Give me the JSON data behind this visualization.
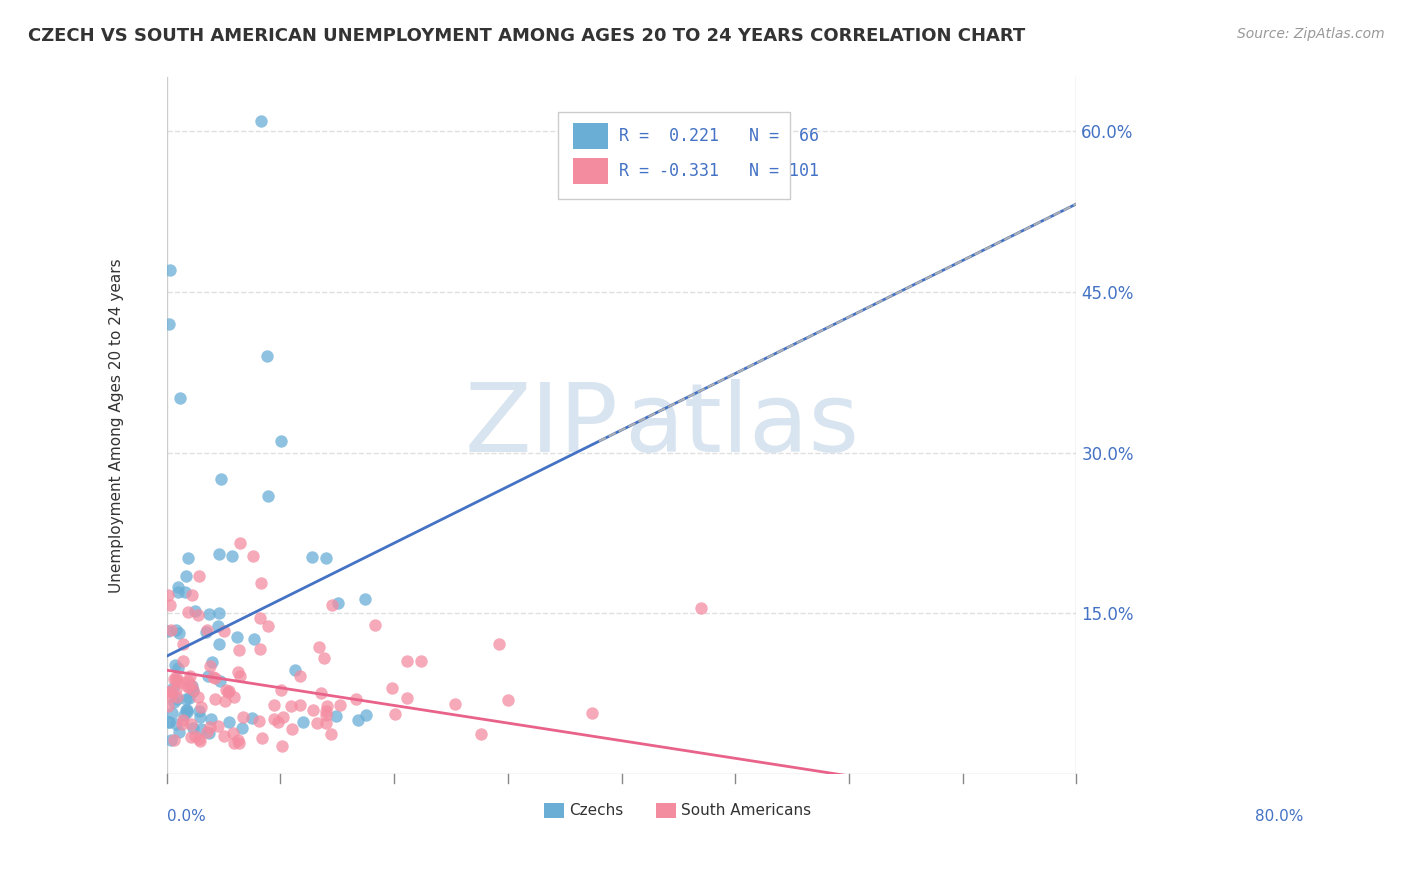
{
  "title": "CZECH VS SOUTH AMERICAN UNEMPLOYMENT AMONG AGES 20 TO 24 YEARS CORRELATION CHART",
  "source": "Source: ZipAtlas.com",
  "ylabel": "Unemployment Among Ages 20 to 24 years",
  "ytick_labels": [
    "15.0%",
    "30.0%",
    "45.0%",
    "60.0%"
  ],
  "ytick_values": [
    0.15,
    0.3,
    0.45,
    0.6
  ],
  "xlim": [
    0.0,
    0.8
  ],
  "ylim": [
    0.0,
    0.65
  ],
  "czechs_color": "#6aaed6",
  "south_americans_color": "#f48ca0",
  "trend_czech_color": "#4472c4",
  "trend_sa_color": "#e8628a",
  "trend_dashed_color": "#b0b0b0",
  "watermark_color": "#d8e4f0",
  "czechs_R": 0.221,
  "czechs_N": 66,
  "sa_R": -0.331,
  "sa_N": 101,
  "czechs_seed": 42,
  "sa_seed": 99,
  "background_color": "#ffffff",
  "grid_color": "#e0e0e0"
}
